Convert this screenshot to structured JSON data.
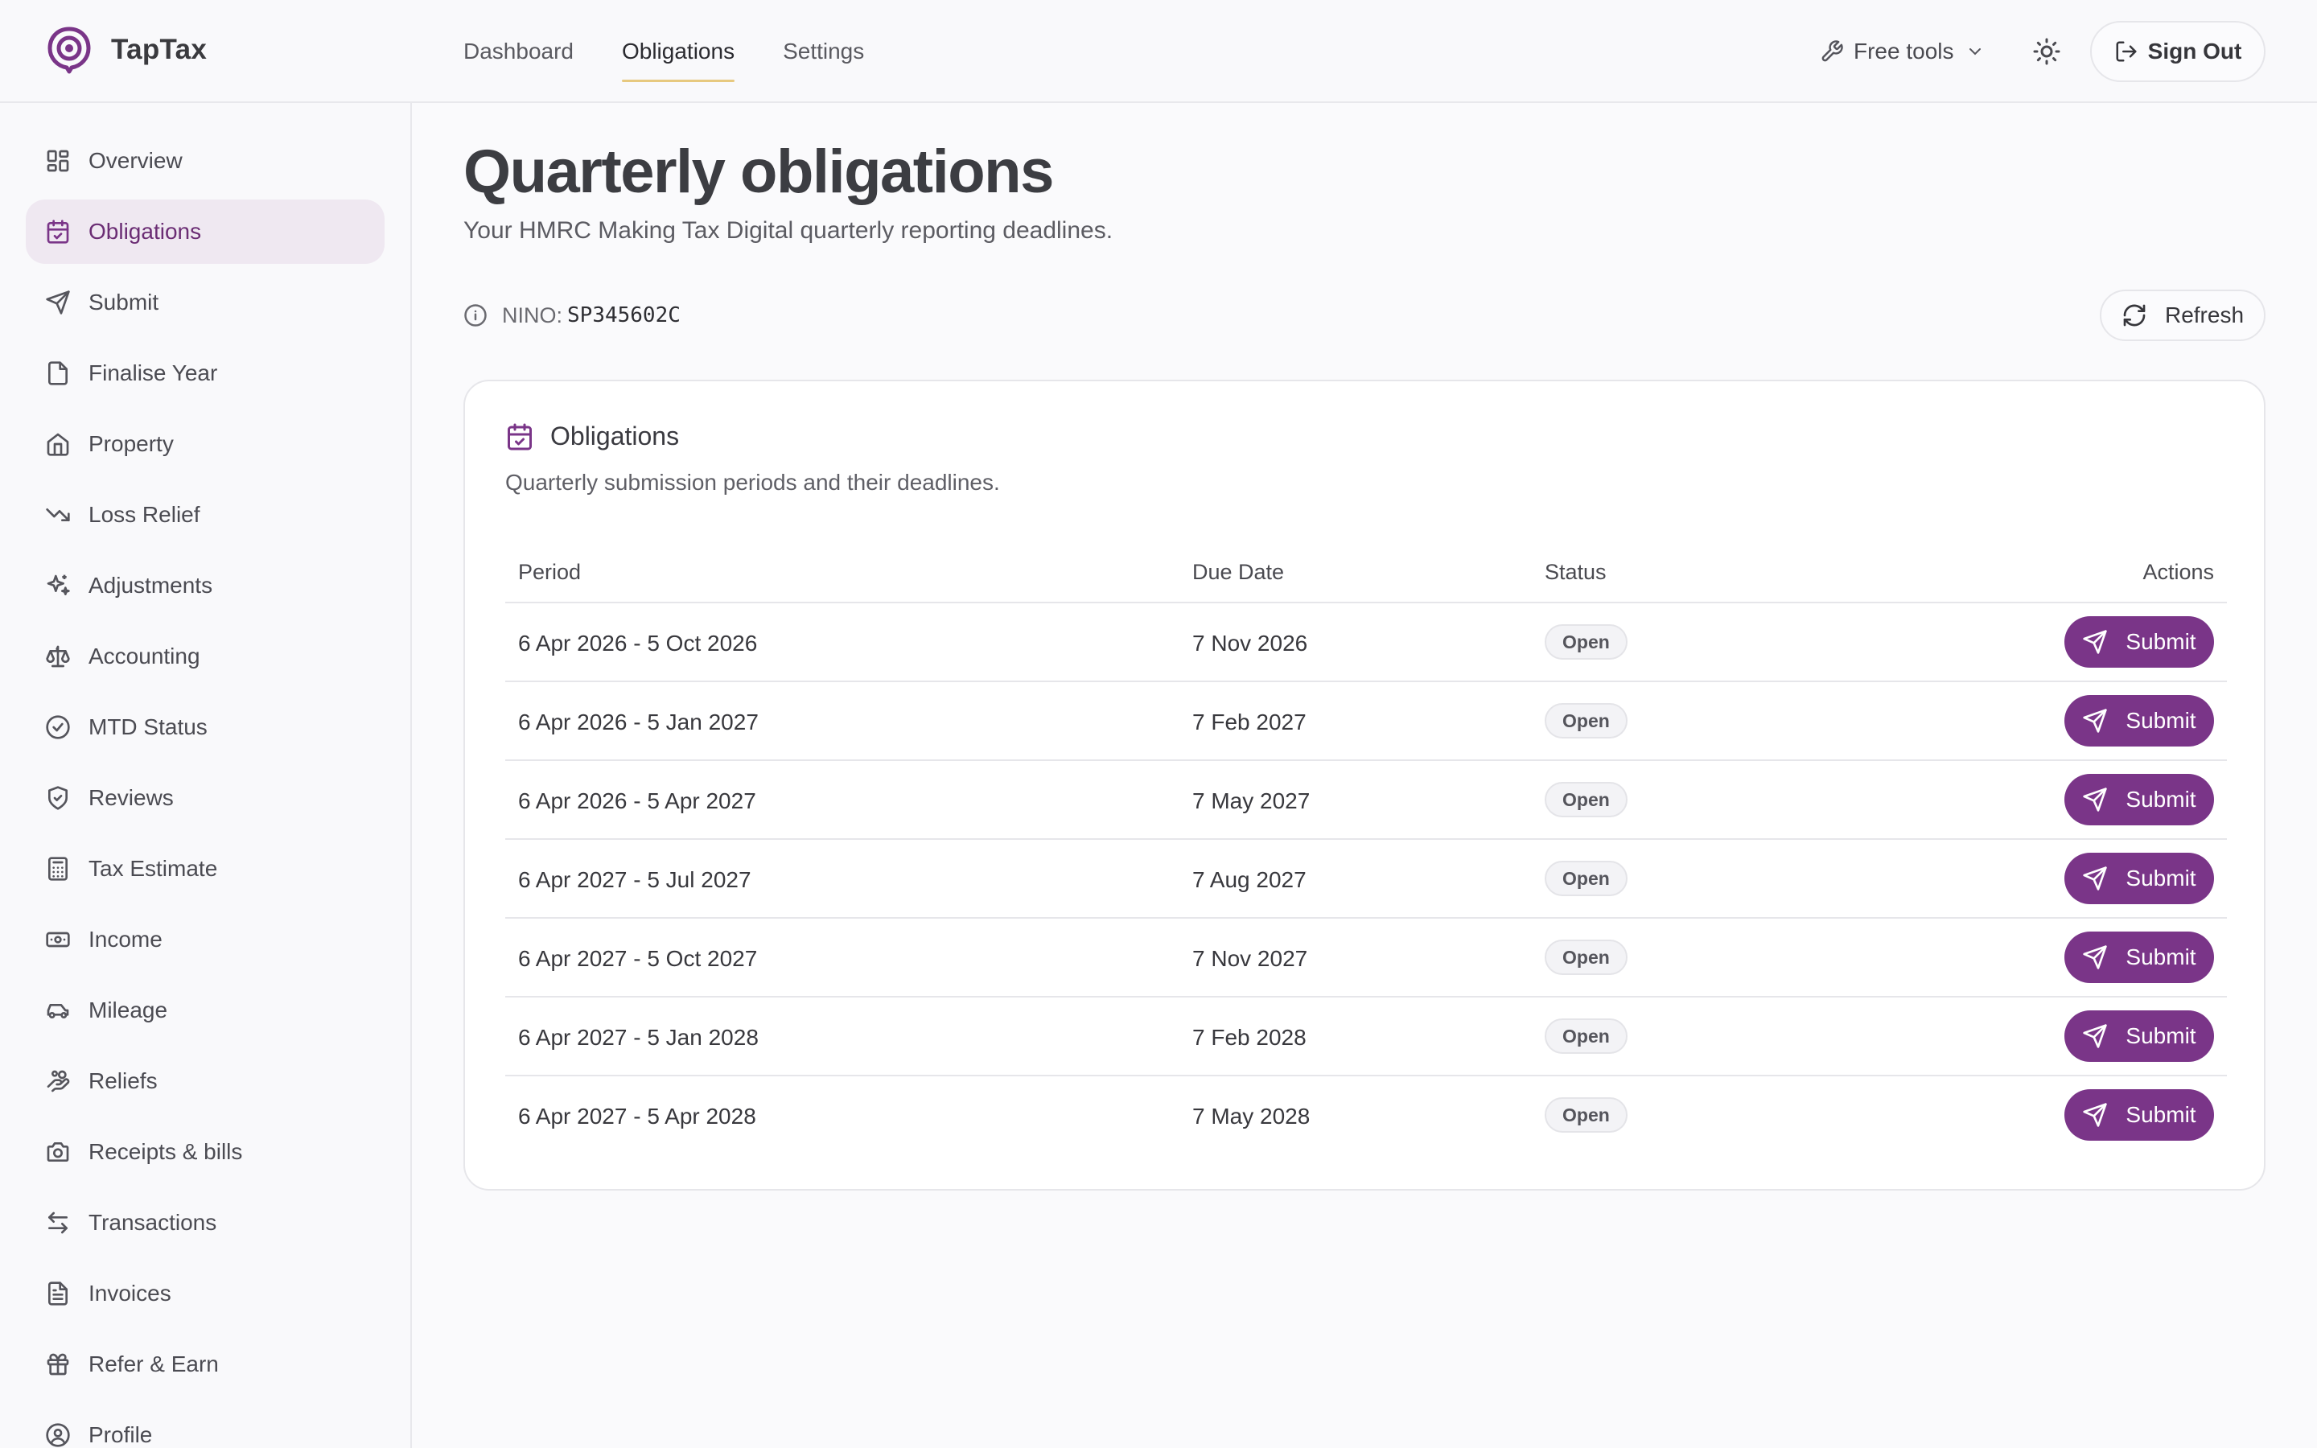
{
  "brand": {
    "name": "TapTax",
    "accent": "#7a3588"
  },
  "topnav": [
    {
      "label": "Dashboard",
      "active": false
    },
    {
      "label": "Obligations",
      "active": true
    },
    {
      "label": "Settings",
      "active": false
    }
  ],
  "header": {
    "free_tools": "Free tools",
    "free_tools_icon": "wrench-icon",
    "theme_icon": "sun-icon",
    "sign_out": "Sign Out",
    "sign_out_icon": "log-out-icon"
  },
  "sidebar": {
    "items": [
      {
        "label": "Overview",
        "icon": "grid-icon",
        "active": false
      },
      {
        "label": "Obligations",
        "icon": "calendar-check-icon",
        "active": true
      },
      {
        "label": "Submit",
        "icon": "send-icon",
        "active": false
      },
      {
        "label": "Finalise Year",
        "icon": "file-icon",
        "active": false
      },
      {
        "label": "Property",
        "icon": "home-icon",
        "active": false
      },
      {
        "label": "Loss Relief",
        "icon": "trending-down-icon",
        "active": false
      },
      {
        "label": "Adjustments",
        "icon": "sparkles-icon",
        "active": false
      },
      {
        "label": "Accounting",
        "icon": "scale-icon",
        "active": false
      },
      {
        "label": "MTD Status",
        "icon": "check-circle-icon",
        "active": false
      },
      {
        "label": "Reviews",
        "icon": "shield-check-icon",
        "active": false
      },
      {
        "label": "Tax Estimate",
        "icon": "calculator-icon",
        "active": false
      },
      {
        "label": "Income",
        "icon": "banknote-icon",
        "active": false
      },
      {
        "label": "Mileage",
        "icon": "car-icon",
        "active": false
      },
      {
        "label": "Reliefs",
        "icon": "hand-coins-icon",
        "active": false
      },
      {
        "label": "Receipts & bills",
        "icon": "camera-icon",
        "active": false
      },
      {
        "label": "Transactions",
        "icon": "arrows-swap-icon",
        "active": false
      },
      {
        "label": "Invoices",
        "icon": "file-text-icon",
        "active": false
      },
      {
        "label": "Refer & Earn",
        "icon": "gift-icon",
        "active": false
      },
      {
        "label": "Profile",
        "icon": "user-circle-icon",
        "active": false
      }
    ]
  },
  "main": {
    "title": "Quarterly obligations",
    "subtitle": "Your HMRC Making Tax Digital quarterly reporting deadlines.",
    "nino_label": "NINO:",
    "nino_value": "SP345602C",
    "refresh_label": "Refresh"
  },
  "card": {
    "title": "Obligations",
    "description": "Quarterly submission periods and their deadlines.",
    "columns": {
      "period": "Period",
      "due": "Due Date",
      "status": "Status",
      "actions": "Actions"
    },
    "rows": [
      {
        "period": "6 Apr 2026 - 5 Oct 2026",
        "due": "7 Nov 2026",
        "status": "Open",
        "action": "Submit"
      },
      {
        "period": "6 Apr 2026 - 5 Jan 2027",
        "due": "7 Feb 2027",
        "status": "Open",
        "action": "Submit"
      },
      {
        "period": "6 Apr 2026 - 5 Apr 2027",
        "due": "7 May 2027",
        "status": "Open",
        "action": "Submit"
      },
      {
        "period": "6 Apr 2027 - 5 Jul 2027",
        "due": "7 Aug 2027",
        "status": "Open",
        "action": "Submit"
      },
      {
        "period": "6 Apr 2027 - 5 Oct 2027",
        "due": "7 Nov 2027",
        "status": "Open",
        "action": "Submit"
      },
      {
        "period": "6 Apr 2027 - 5 Jan 2028",
        "due": "7 Feb 2028",
        "status": "Open",
        "action": "Submit"
      },
      {
        "period": "6 Apr 2027 - 5 Apr 2028",
        "due": "7 May 2028",
        "status": "Open",
        "action": "Submit"
      }
    ]
  }
}
